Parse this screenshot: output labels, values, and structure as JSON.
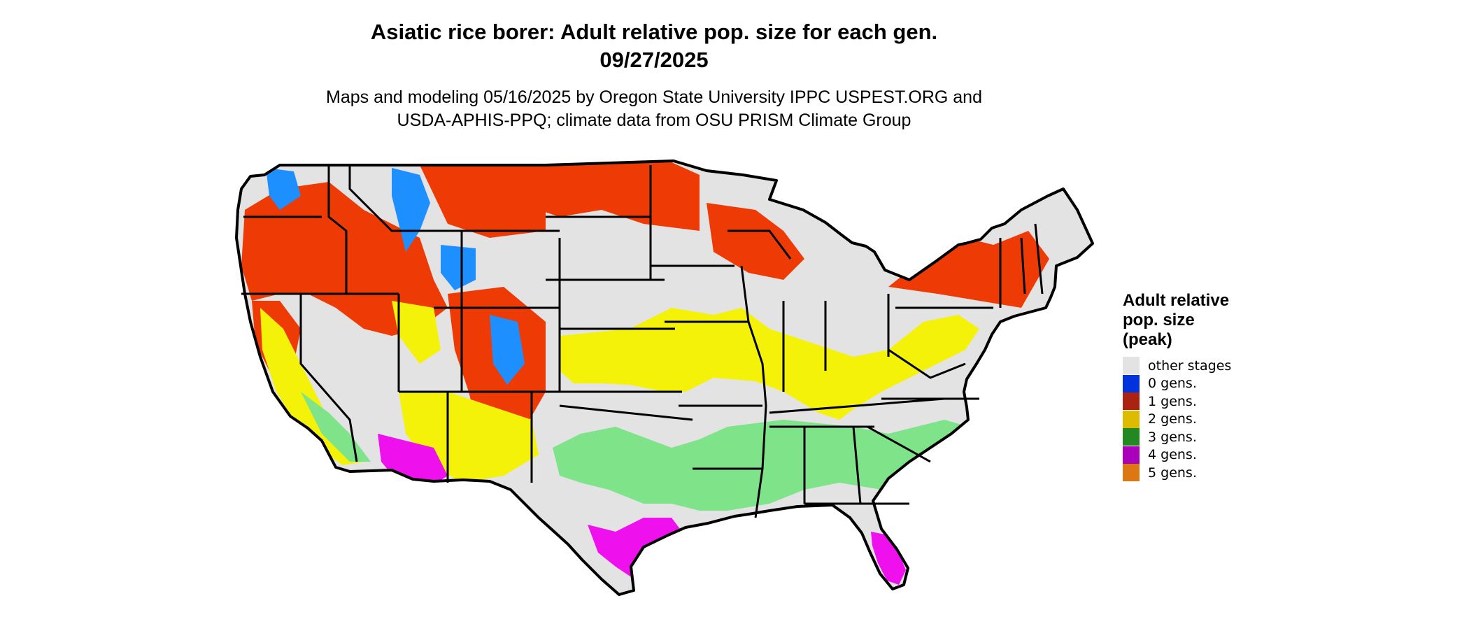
{
  "title": {
    "line1": "Asiatic rice borer: Adult relative pop. size for each gen.",
    "line2": "09/27/2025"
  },
  "subtitle": {
    "line1": "Maps and modeling 05/16/2025 by Oregon State University IPPC USPEST.ORG and",
    "line2": "USDA-APHIS-PPQ; climate data from OSU PRISM Climate Group"
  },
  "legend": {
    "title_line1": "Adult relative",
    "title_line2": "pop. size",
    "title_line3": "(peak)",
    "items": [
      {
        "label": "other stages",
        "color": "#e3e3e3"
      },
      {
        "label": "0 gens.",
        "color": "#0033dd"
      },
      {
        "label": "1 gens.",
        "color": "#aa2211"
      },
      {
        "label": "2 gens.",
        "color": "#ddbb00"
      },
      {
        "label": "3 gens.",
        "color": "#228822"
      },
      {
        "label": "4 gens.",
        "color": "#aa00bb"
      },
      {
        "label": "5 gens.",
        "color": "#dd7711"
      }
    ]
  },
  "map": {
    "colors": {
      "base": "#e3e3e3",
      "zero_gen": "#1e8fff",
      "one_gen": "#ee3a05",
      "two_gen": "#f5f20a",
      "three_gen": "#7fe38a",
      "four_gen": "#ee11ee",
      "five_gen": "#ee7711",
      "border": "#000000"
    }
  }
}
